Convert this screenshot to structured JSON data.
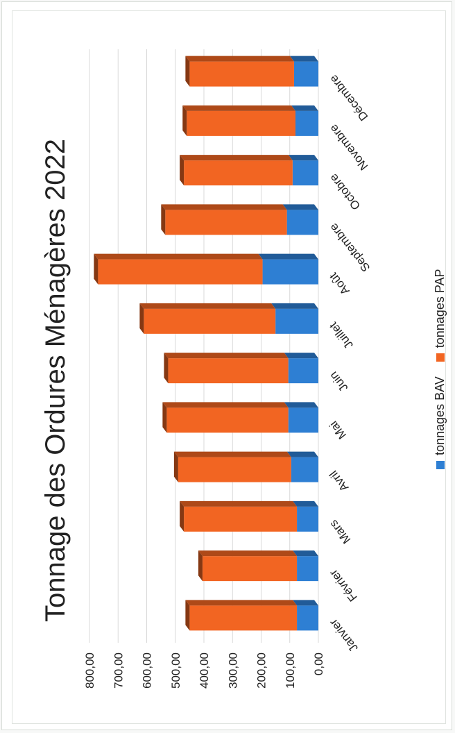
{
  "chart_data": {
    "type": "bar",
    "stacked": true,
    "title": "Tonnage des Ordures Ménagères 2022",
    "categories": [
      "Janvier",
      "Février",
      "Mars",
      "Avril",
      "Mai",
      "Juin",
      "Juillet",
      "Août",
      "Septembre",
      "Octobre",
      "Novembre",
      "Décembre"
    ],
    "series": [
      {
        "name": "tonnages BAV",
        "color": "#2e7fd3",
        "values": [
          75,
          75,
          75,
          95,
          105,
          105,
          150,
          195,
          110,
          90,
          80,
          85
        ]
      },
      {
        "name": "tonnages PAP",
        "color": "#f26522",
        "values": [
          375,
          330,
          395,
          395,
          425,
          420,
          460,
          575,
          425,
          380,
          380,
          365
        ]
      }
    ],
    "y_ticks": [
      "0,00",
      "100,00",
      "200,00",
      "300,00",
      "400,00",
      "500,00",
      "600,00",
      "700,00",
      "800,00"
    ],
    "ylim": [
      0,
      800
    ],
    "grid": true,
    "legend_position": "bottom"
  }
}
